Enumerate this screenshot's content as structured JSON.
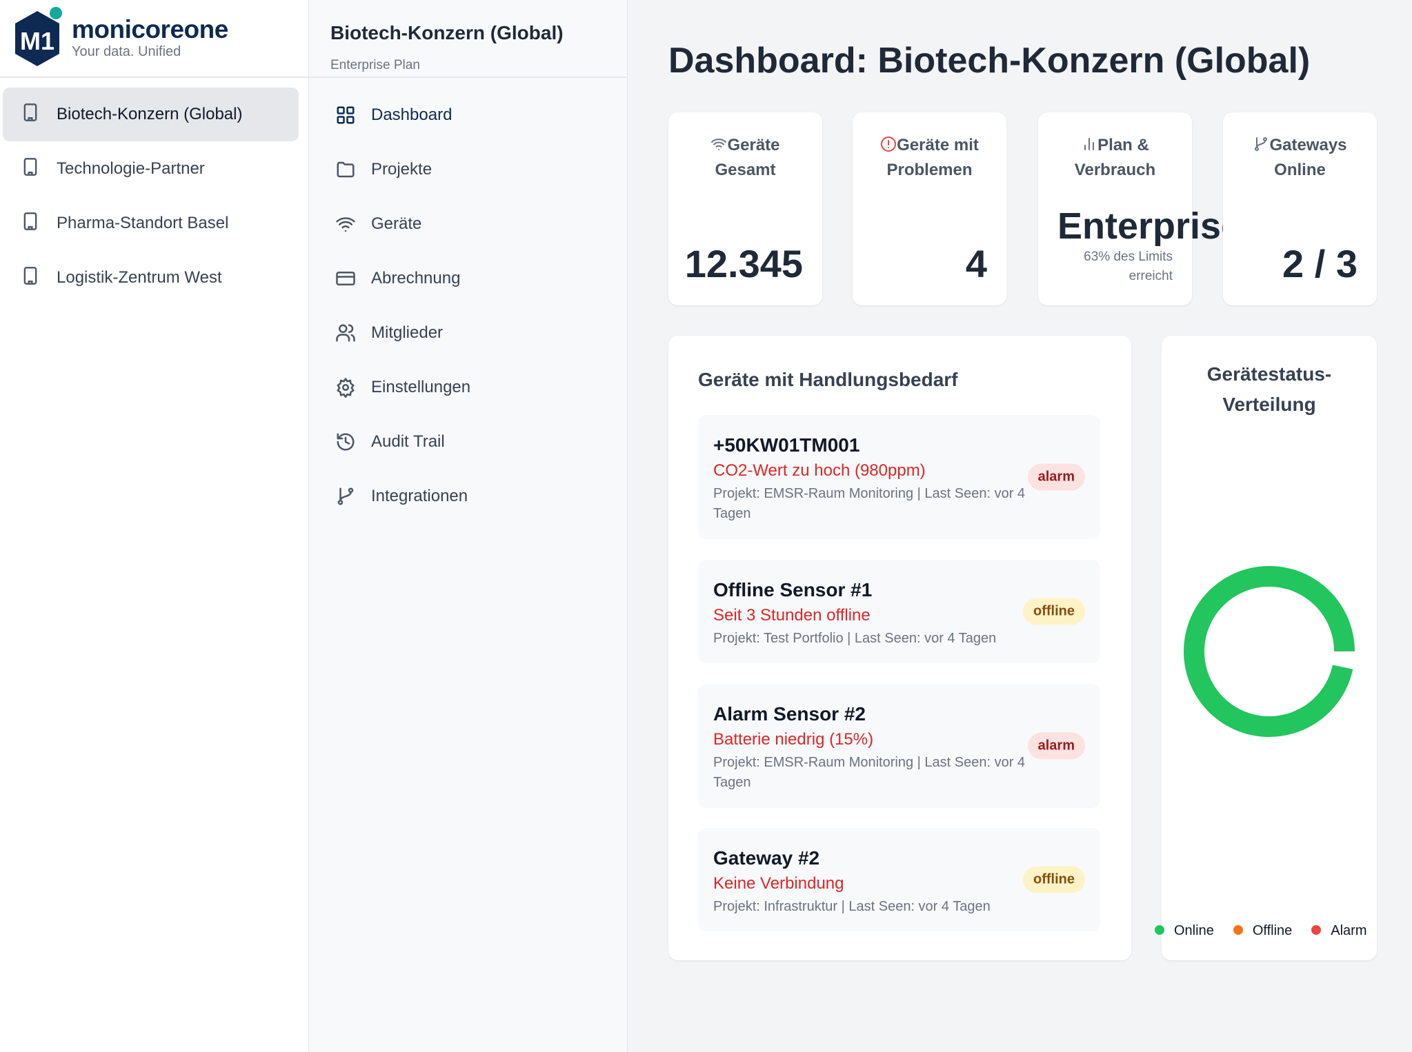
{
  "brand": {
    "name": "monicoreone",
    "tagline": "Your data. Unified",
    "logo_text": "M1"
  },
  "organizations": [
    {
      "label": "Biotech-Konzern (Global)",
      "active": true
    },
    {
      "label": "Technologie-Partner"
    },
    {
      "label": "Pharma-Standort Basel"
    },
    {
      "label": "Logistik-Zentrum West"
    }
  ],
  "org_header": {
    "title": "Biotech-Konzern (Global)",
    "plan": "Enterprise Plan"
  },
  "nav": [
    {
      "label": "Dashboard",
      "icon": "grid-icon",
      "active": true
    },
    {
      "label": "Projekte",
      "icon": "folder-icon"
    },
    {
      "label": "Geräte",
      "icon": "wifi-icon"
    },
    {
      "label": "Abrechnung",
      "icon": "credit-card-icon"
    },
    {
      "label": "Mitglieder",
      "icon": "users-icon"
    },
    {
      "label": "Einstellungen",
      "icon": "gear-icon"
    },
    {
      "label": "Audit Trail",
      "icon": "history-icon"
    },
    {
      "label": "Integrationen",
      "icon": "git-branch-icon"
    }
  ],
  "page_title": "Dashboard: Biotech-Konzern (Global)",
  "stats": {
    "devices": {
      "label": "Geräte Gesamt",
      "value": "12.345"
    },
    "problems": {
      "label": "Geräte mit Problemen",
      "value": "4"
    },
    "plan": {
      "label": "Plan & Verbrauch",
      "value": "Enterprise",
      "sub": "63% des Limits erreicht"
    },
    "gateways": {
      "label": "Gateways Online",
      "value": "2 / 3"
    }
  },
  "alerts": {
    "title": "Geräte mit Handlungsbedarf",
    "items": [
      {
        "name": "+50KW01TM001",
        "reason": "CO2-Wert zu hoch (980ppm)",
        "meta": "Projekt: EMSR-Raum Monitoring | Last Seen: vor 4 Tagen",
        "status": "alarm"
      },
      {
        "name": "Offline Sensor #1",
        "reason": "Seit 3 Stunden offline",
        "meta": "Projekt: Test Portfolio | Last Seen: vor 4 Tagen",
        "status": "offline"
      },
      {
        "name": "Alarm Sensor #2",
        "reason": "Batterie niedrig (15%)",
        "meta": "Projekt: EMSR-Raum Monitoring | Last Seen: vor 4 Tagen",
        "status": "alarm"
      },
      {
        "name": "Gateway #2",
        "reason": "Keine Verbindung",
        "meta": "Projekt: Infrastruktur | Last Seen: vor 4 Tagen",
        "status": "offline"
      }
    ]
  },
  "chart_data": {
    "type": "pie",
    "title": "Gerätestatus-Verteilung",
    "categories": [
      "Online",
      "Offline",
      "Alarm"
    ],
    "values": [
      12341,
      2,
      2
    ],
    "colors": [
      "#22c55e",
      "#f97316",
      "#ef4444"
    ],
    "legend": "bottom"
  }
}
